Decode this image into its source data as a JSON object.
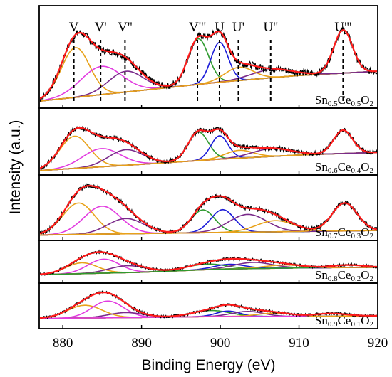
{
  "chart_data": {
    "type": "line",
    "xlabel": "Binding Energy (eV)",
    "ylabel": "Intensity (a.u.)",
    "xlim": [
      877,
      920
    ],
    "xticks": [
      "880",
      "890",
      "900",
      "910",
      "920"
    ],
    "grid": false,
    "peak_labels": [
      {
        "text": "V",
        "x": 881.4
      },
      {
        "text": "V'",
        "x": 884.8
      },
      {
        "text": "V''",
        "x": 887.9
      },
      {
        "text": "V'''",
        "x": 897.1
      },
      {
        "text": "U",
        "x": 899.9
      },
      {
        "text": "U'",
        "x": 902.3
      },
      {
        "text": "U''",
        "x": 906.4
      },
      {
        "text": "U'''",
        "x": 915.6
      }
    ],
    "panels": [
      {
        "label": {
          "a": "Sn",
          "as": "0.5",
          "b": "Ce",
          "bs": "0.5",
          "c": "O",
          "cs": "2"
        },
        "baseline": [
          [
            877,
            0.05
          ],
          [
            890,
            0.18
          ],
          [
            900,
            0.28
          ],
          [
            910,
            0.36
          ],
          [
            920,
            0.41
          ]
        ],
        "components": [
          {
            "color": "#e8a21a",
            "center": 881.6,
            "width": 1.8,
            "height": 0.6
          },
          {
            "color": "#e23ce0",
            "center": 884.9,
            "width": 2.6,
            "height": 0.34
          },
          {
            "color": "#7a2a8a",
            "center": 888.0,
            "width": 2.2,
            "height": 0.25
          },
          {
            "color": "#2e9a2e",
            "center": 897.2,
            "width": 1.3,
            "height": 0.55
          },
          {
            "color": "#1a1ad8",
            "center": 899.9,
            "width": 1.1,
            "height": 0.48
          },
          {
            "color": "#e8a21a",
            "center": 902.4,
            "width": 1.8,
            "height": 0.16
          },
          {
            "color": "#7a2a8a",
            "center": 906.5,
            "width": 2.6,
            "height": 0.1
          },
          {
            "color": "#e8a21a",
            "center": 915.6,
            "width": 1.2,
            "height": 0.52
          }
        ]
      },
      {
        "label": {
          "a": "Sn",
          "as": "0.6",
          "b": "Ce",
          "bs": "0.4",
          "c": "O",
          "cs": "2"
        },
        "baseline": [
          [
            877,
            0.03
          ],
          [
            890,
            0.15
          ],
          [
            900,
            0.25
          ],
          [
            910,
            0.33
          ],
          [
            920,
            0.38
          ]
        ],
        "components": [
          {
            "color": "#e8a21a",
            "center": 881.5,
            "width": 1.9,
            "height": 0.62
          },
          {
            "color": "#e23ce0",
            "center": 884.9,
            "width": 2.4,
            "height": 0.35
          },
          {
            "color": "#7a2a8a",
            "center": 888.0,
            "width": 2.2,
            "height": 0.3
          },
          {
            "color": "#2e9a2e",
            "center": 897.2,
            "width": 1.3,
            "height": 0.55
          },
          {
            "color": "#1a1ad8",
            "center": 899.9,
            "width": 1.1,
            "height": 0.45
          },
          {
            "color": "#e8a21a",
            "center": 902.4,
            "width": 1.8,
            "height": 0.15
          },
          {
            "color": "#7a2a8a",
            "center": 906.5,
            "width": 2.5,
            "height": 0.15
          },
          {
            "color": "#e8a21a",
            "center": 915.6,
            "width": 1.2,
            "height": 0.45
          }
        ]
      },
      {
        "label": {
          "a": "Sn",
          "as": "0.7",
          "b": "Ce",
          "bs": "0.3",
          "c": "O",
          "cs": "2"
        },
        "baseline": [
          [
            877,
            0.05
          ],
          [
            890,
            0.08
          ],
          [
            900,
            0.1
          ],
          [
            910,
            0.12
          ],
          [
            920,
            0.14
          ]
        ],
        "components": [
          {
            "color": "#e8a21a",
            "center": 882.0,
            "width": 2.0,
            "height": 0.62
          },
          {
            "color": "#e23ce0",
            "center": 885.0,
            "width": 2.3,
            "height": 0.55
          },
          {
            "color": "#7a2a8a",
            "center": 888.0,
            "width": 2.3,
            "height": 0.3
          },
          {
            "color": "#2e9a2e",
            "center": 897.8,
            "width": 1.5,
            "height": 0.45
          },
          {
            "color": "#1a1ad8",
            "center": 900.3,
            "width": 1.5,
            "height": 0.45
          },
          {
            "color": "#7a2a8a",
            "center": 903.5,
            "width": 2.4,
            "height": 0.35
          },
          {
            "color": "#e8a21a",
            "center": 907.0,
            "width": 2.4,
            "height": 0.22
          },
          {
            "color": "#e8a21a",
            "center": 915.8,
            "width": 1.6,
            "height": 0.55
          }
        ]
      },
      {
        "label": {
          "a": "Sn",
          "as": "0.8",
          "b": "Ce",
          "bs": "0.2",
          "c": "O",
          "cs": "2"
        },
        "baseline": [
          [
            877,
            0.18
          ],
          [
            890,
            0.26
          ],
          [
            900,
            0.36
          ],
          [
            910,
            0.4
          ],
          [
            920,
            0.42
          ]
        ],
        "components": [
          {
            "color": "#e8a21a",
            "center": 882.4,
            "width": 2.0,
            "height": 0.35
          },
          {
            "color": "#e23ce0",
            "center": 885.2,
            "width": 2.0,
            "height": 0.45
          },
          {
            "color": "#7a2a8a",
            "center": 888.2,
            "width": 2.3,
            "height": 0.22
          },
          {
            "color": "#2e9a2e",
            "center": 898.2,
            "width": 2.4,
            "height": 0.18
          },
          {
            "color": "#1a1ad8",
            "center": 901.2,
            "width": 2.0,
            "height": 0.15
          },
          {
            "color": "#7a2a8a",
            "center": 904.2,
            "width": 2.4,
            "height": 0.2
          },
          {
            "color": "#e8a21a",
            "center": 908.0,
            "width": 2.4,
            "height": 0.1
          },
          {
            "color": "#2e9a2e",
            "center": 916.2,
            "width": 2.0,
            "height": 0.08
          }
        ]
      },
      {
        "label": {
          "a": "Sn",
          "as": "0.9",
          "b": "Ce",
          "bs": "0.1",
          "c": "O",
          "cs": "2"
        },
        "baseline": [
          [
            877,
            0.22
          ],
          [
            890,
            0.25
          ],
          [
            900,
            0.28
          ],
          [
            910,
            0.28
          ],
          [
            920,
            0.3
          ]
        ],
        "components": [
          {
            "color": "#e8a21a",
            "center": 882.8,
            "width": 2.2,
            "height": 0.38
          },
          {
            "color": "#e23ce0",
            "center": 885.7,
            "width": 2.0,
            "height": 0.5
          },
          {
            "color": "#7a2a8a",
            "center": 888.0,
            "width": 2.2,
            "height": 0.15
          },
          {
            "color": "#2e9a2e",
            "center": 898.8,
            "width": 2.4,
            "height": 0.18
          },
          {
            "color": "#1a1ad8",
            "center": 901.0,
            "width": 1.5,
            "height": 0.16
          },
          {
            "color": "#7a2a8a",
            "center": 903.5,
            "width": 2.0,
            "height": 0.15
          },
          {
            "color": "#e8a21a",
            "center": 907.0,
            "width": 2.2,
            "height": 0.1
          },
          {
            "color": "#e23ce0",
            "center": 914.0,
            "width": 2.0,
            "height": 0.08
          }
        ]
      }
    ],
    "colors": {
      "data": "#000000",
      "fit": "#ff1a1a",
      "background": "#ff8c00",
      "axes": "#000000"
    }
  }
}
